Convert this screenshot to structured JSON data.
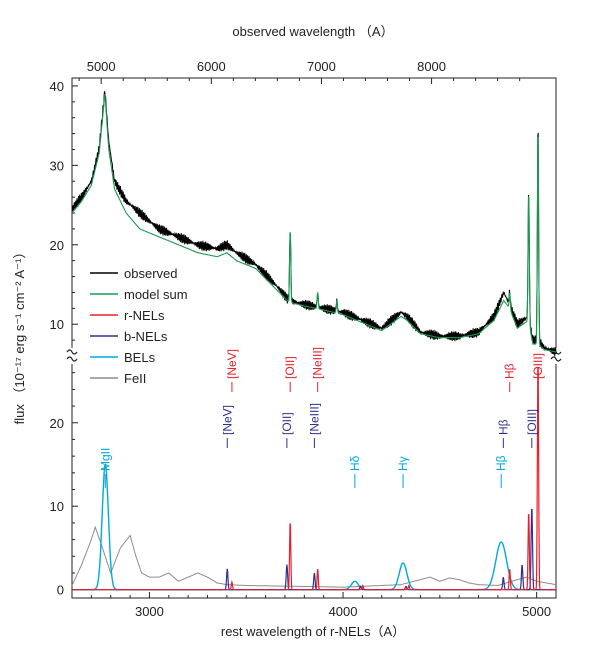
{
  "chart_data": {
    "type": "line",
    "top_axis": {
      "label": "observed wavelength （A）",
      "ticks": [
        5000,
        6000,
        7000,
        8000
      ],
      "range": [
        4735,
        9130
      ]
    },
    "bottom_axis": {
      "label": "rest wavelength of r-NELs（A）",
      "ticks": [
        3000,
        4000,
        5000
      ],
      "range": [
        2600,
        5100
      ]
    },
    "y_label": "flux （10⁻¹⁷ erg s⁻¹ cm⁻² A⁻¹）",
    "upper_panel": {
      "ylim": [
        6,
        41
      ],
      "ticks": [
        10,
        20,
        30,
        40
      ]
    },
    "lower_panel": {
      "ylim": [
        -1,
        28
      ],
      "ticks": [
        0,
        10,
        20
      ]
    },
    "legend": [
      "observed",
      "model sum",
      "r-NELs",
      "b-NELs",
      "BELs",
      "FeII"
    ],
    "colors": {
      "observed": "#000000",
      "model": "#1a9a50",
      "rnel": "#e8202a",
      "bnel": "#2e3192",
      "bel": "#00a8e0",
      "feii": "#8c8c8c"
    },
    "upper_series": {
      "observed_anchors": [
        [
          2600,
          24.5
        ],
        [
          2650,
          26
        ],
        [
          2700,
          28
        ],
        [
          2740,
          32
        ],
        [
          2770,
          39.5
        ],
        [
          2790,
          33
        ],
        [
          2820,
          28
        ],
        [
          2880,
          25.5
        ],
        [
          2950,
          24
        ],
        [
          3050,
          22
        ],
        [
          3150,
          21
        ],
        [
          3250,
          20
        ],
        [
          3350,
          19.5
        ],
        [
          3400,
          20
        ],
        [
          3450,
          19
        ],
        [
          3550,
          17.5
        ],
        [
          3650,
          15
        ],
        [
          3720,
          13
        ],
        [
          3800,
          12.5
        ],
        [
          3900,
          12
        ],
        [
          4000,
          11.5
        ],
        [
          4100,
          10.5
        ],
        [
          4200,
          9.5
        ],
        [
          4300,
          11.5
        ],
        [
          4330,
          11
        ],
        [
          4400,
          9
        ],
        [
          4500,
          8.5
        ],
        [
          4600,
          8.5
        ],
        [
          4700,
          9
        ],
        [
          4780,
          11
        ],
        [
          4830,
          14
        ],
        [
          4860,
          12.5
        ],
        [
          4900,
          10
        ],
        [
          4959,
          11
        ],
        [
          4980,
          8
        ],
        [
          5007,
          8
        ],
        [
          5040,
          7
        ],
        [
          5100,
          6.5
        ]
      ],
      "model_anchors": [
        [
          2600,
          24
        ],
        [
          2650,
          25.5
        ],
        [
          2700,
          27.5
        ],
        [
          2740,
          31.5
        ],
        [
          2770,
          39
        ],
        [
          2790,
          32
        ],
        [
          2820,
          27
        ],
        [
          2880,
          24
        ],
        [
          2950,
          22
        ],
        [
          3050,
          21
        ],
        [
          3150,
          20
        ],
        [
          3250,
          19
        ],
        [
          3350,
          18.5
        ],
        [
          3400,
          19
        ],
        [
          3450,
          18
        ],
        [
          3550,
          17
        ],
        [
          3650,
          14.5
        ],
        [
          3720,
          12.8
        ],
        [
          3800,
          12.3
        ],
        [
          3900,
          11.8
        ],
        [
          4000,
          11.2
        ],
        [
          4100,
          10.2
        ],
        [
          4200,
          9.2
        ],
        [
          4300,
          11
        ],
        [
          4330,
          10.5
        ],
        [
          4400,
          8.8
        ],
        [
          4500,
          8.3
        ],
        [
          4600,
          8.3
        ],
        [
          4700,
          8.8
        ],
        [
          4780,
          10.5
        ],
        [
          4830,
          13
        ],
        [
          4860,
          12
        ],
        [
          4900,
          9.5
        ],
        [
          4959,
          10.5
        ],
        [
          4980,
          7.5
        ],
        [
          5007,
          7.5
        ],
        [
          5040,
          6.8
        ],
        [
          5100,
          6.5
        ]
      ],
      "model_lines": [
        [
          3727,
          22
        ],
        [
          3869,
          14
        ],
        [
          3968,
          13
        ],
        [
          4959,
          27
        ],
        [
          5007,
          35
        ],
        [
          4861,
          14
        ]
      ]
    },
    "lower_series": {
      "rnel_lines": [
        [
          3426,
          0.9
        ],
        [
          3727,
          8.3
        ],
        [
          3869,
          2.5
        ],
        [
          4102,
          0.5
        ],
        [
          4340,
          0.5
        ],
        [
          4861,
          2.5
        ],
        [
          4959,
          9.5
        ],
        [
          5007,
          28
        ]
      ],
      "bnel_lines": [
        [
          3402,
          2.5
        ],
        [
          3710,
          3.0
        ],
        [
          3852,
          2.0
        ],
        [
          4090,
          0.4
        ],
        [
          4325,
          0.4
        ],
        [
          4828,
          1.5
        ],
        [
          4925,
          3.0
        ],
        [
          4975,
          10
        ]
      ],
      "bel_lines": [
        [
          2772,
          15,
          16
        ],
        [
          4061,
          1.0,
          18
        ],
        [
          4310,
          3.2,
          20
        ],
        [
          4817,
          5.7,
          28
        ]
      ],
      "feii_anchors": [
        [
          2600,
          0.5
        ],
        [
          2650,
          3
        ],
        [
          2700,
          6
        ],
        [
          2720,
          7.5
        ],
        [
          2750,
          5.5
        ],
        [
          2800,
          2
        ],
        [
          2850,
          5
        ],
        [
          2900,
          6.5
        ],
        [
          2930,
          4
        ],
        [
          2960,
          2
        ],
        [
          3000,
          1.5
        ],
        [
          3050,
          1.5
        ],
        [
          3100,
          2
        ],
        [
          3150,
          1
        ],
        [
          3200,
          1.5
        ],
        [
          3250,
          2
        ],
        [
          3300,
          1.5
        ],
        [
          3350,
          0.8
        ],
        [
          3400,
          0.6
        ],
        [
          3500,
          0.5
        ],
        [
          4000,
          0.3
        ],
        [
          4300,
          0.6
        ],
        [
          4400,
          1.2
        ],
        [
          4450,
          1.5
        ],
        [
          4500,
          1.0
        ],
        [
          4550,
          1.4
        ],
        [
          4600,
          1.2
        ],
        [
          4650,
          0.8
        ],
        [
          4700,
          0.6
        ],
        [
          4800,
          0.5
        ],
        [
          4900,
          1.2
        ],
        [
          4950,
          1.5
        ],
        [
          5000,
          1.0
        ],
        [
          5100,
          0.6
        ]
      ]
    },
    "line_labels": [
      {
        "text": "MgII",
        "x": 2772,
        "row": "mid",
        "color": "bel"
      },
      {
        "text": "[NeV]",
        "x": 3426,
        "row": "top",
        "color": "rnel"
      },
      {
        "text": "[NeV]",
        "x": 3402,
        "row": "high",
        "color": "bnel"
      },
      {
        "text": "[OII]",
        "x": 3727,
        "row": "top",
        "color": "rnel"
      },
      {
        "text": "[OII]",
        "x": 3710,
        "row": "high",
        "color": "bnel"
      },
      {
        "text": "[NeIII]",
        "x": 3869,
        "row": "top",
        "color": "rnel"
      },
      {
        "text": "[NeIII]",
        "x": 3852,
        "row": "high",
        "color": "bnel"
      },
      {
        "text": "Hδ",
        "x": 4061,
        "row": "mid",
        "color": "bel"
      },
      {
        "text": "Hγ",
        "x": 4310,
        "row": "mid",
        "color": "bel"
      },
      {
        "text": "Hβ",
        "x": 4817,
        "row": "mid",
        "color": "bel"
      },
      {
        "text": "Hβ",
        "x": 4828,
        "row": "high",
        "color": "bnel"
      },
      {
        "text": "Hβ",
        "x": 4861,
        "row": "top",
        "color": "rnel"
      },
      {
        "text": "[OIII]",
        "x": 4975,
        "row": "high",
        "color": "bnel"
      },
      {
        "text": "[OIII]",
        "x": 5007,
        "row": "top",
        "color": "rnel"
      }
    ]
  }
}
